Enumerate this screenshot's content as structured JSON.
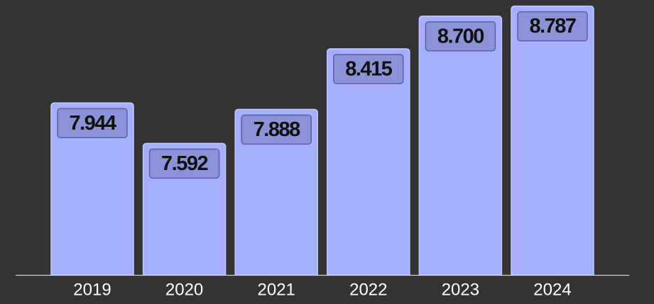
{
  "chart_data": {
    "type": "bar",
    "categories": [
      "2019",
      "2020",
      "2021",
      "2022",
      "2023",
      "2024"
    ],
    "values": [
      7.944,
      7.592,
      7.888,
      8.415,
      8.7,
      8.787
    ],
    "value_labels": [
      "7.944",
      "7.592",
      "7.888",
      "8.415",
      "8.700",
      "8.787"
    ],
    "color": "#a5affe",
    "ylim": [
      6.447,
      8.84
    ]
  }
}
